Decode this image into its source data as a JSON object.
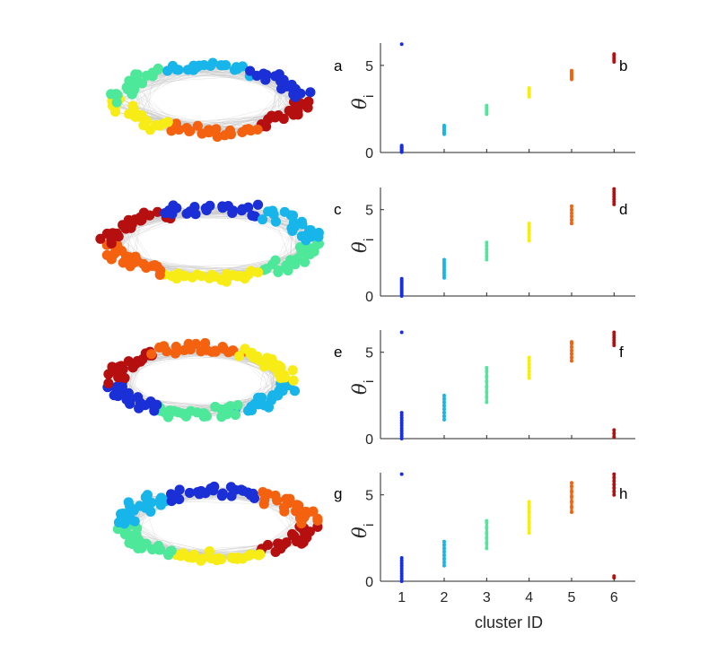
{
  "figure": {
    "ylabel_symbol": "θ",
    "ylabel_subscript": "i",
    "xlabel": "cluster ID",
    "cluster_colors": [
      "#1a2fd6",
      "#17b5ea",
      "#4de89a",
      "#f7ec15",
      "#f5620f",
      "#b50f0f"
    ],
    "network_panel_letters": [
      "a",
      "c",
      "e",
      "g"
    ],
    "scatter_panel_letters": [
      "b",
      "d",
      "f",
      "h"
    ]
  },
  "chart_data": [
    {
      "type": "scatter",
      "panel": "b",
      "xlabel": "",
      "ylabel": "θi",
      "xlim": [
        0.5,
        6.5
      ],
      "ylim": [
        0,
        6.283
      ],
      "yticks": [
        0,
        5
      ],
      "xticks": [],
      "series": [
        {
          "x": 1,
          "values": [
            0.02,
            0.05,
            0.1,
            0.15,
            0.2,
            0.25,
            0.3,
            0.35,
            0.4,
            6.22
          ]
        },
        {
          "x": 2,
          "values": [
            1.05,
            1.15,
            1.25,
            1.35,
            1.45,
            1.55
          ]
        },
        {
          "x": 3,
          "values": [
            2.2,
            2.3,
            2.4,
            2.5,
            2.6,
            2.7
          ]
        },
        {
          "x": 4,
          "values": [
            3.2,
            3.3,
            3.4,
            3.5,
            3.6,
            3.7
          ]
        },
        {
          "x": 5,
          "values": [
            4.2,
            4.3,
            4.4,
            4.5,
            4.6,
            4.7
          ]
        },
        {
          "x": 6,
          "values": [
            5.2,
            5.3,
            5.4,
            5.5,
            5.6,
            5.65
          ]
        }
      ]
    },
    {
      "type": "scatter",
      "panel": "d",
      "xlabel": "",
      "ylabel": "θi",
      "xlim": [
        0.5,
        6.5
      ],
      "ylim": [
        0,
        6.283
      ],
      "yticks": [
        0,
        5
      ],
      "xticks": [],
      "series": [
        {
          "x": 1,
          "values": [
            0.0,
            0.1,
            0.2,
            0.3,
            0.4,
            0.5,
            0.6,
            0.7,
            0.8,
            0.9,
            1.0
          ]
        },
        {
          "x": 2,
          "values": [
            1.05,
            1.2,
            1.35,
            1.5,
            1.65,
            1.8,
            1.95,
            2.1
          ]
        },
        {
          "x": 3,
          "values": [
            2.1,
            2.3,
            2.5,
            2.7,
            2.9,
            3.1
          ]
        },
        {
          "x": 4,
          "values": [
            3.2,
            3.4,
            3.6,
            3.8,
            4.0,
            4.2
          ]
        },
        {
          "x": 5,
          "values": [
            4.2,
            4.4,
            4.6,
            4.8,
            5.0,
            5.2
          ]
        },
        {
          "x": 6,
          "values": [
            5.3,
            5.45,
            5.6,
            5.75,
            5.9,
            6.05,
            6.2
          ]
        }
      ]
    },
    {
      "type": "scatter",
      "panel": "f",
      "xlabel": "",
      "ylabel": "θi",
      "xlim": [
        0.5,
        6.5
      ],
      "ylim": [
        0,
        6.283
      ],
      "yticks": [
        0,
        5
      ],
      "xticks": [],
      "series": [
        {
          "x": 1,
          "values": [
            0.0,
            0.15,
            0.3,
            0.45,
            0.6,
            0.75,
            0.9,
            1.05,
            1.2,
            1.35,
            1.5,
            6.15
          ]
        },
        {
          "x": 2,
          "values": [
            1.1,
            1.3,
            1.5,
            1.7,
            1.9,
            2.1,
            2.3,
            2.5
          ]
        },
        {
          "x": 3,
          "values": [
            2.1,
            2.4,
            2.7,
            3.0,
            3.3,
            3.6,
            3.9,
            4.1
          ]
        },
        {
          "x": 4,
          "values": [
            3.5,
            3.7,
            3.9,
            4.1,
            4.3,
            4.5,
            4.7
          ]
        },
        {
          "x": 5,
          "values": [
            4.5,
            4.7,
            4.9,
            5.1,
            5.3,
            5.5,
            5.6
          ]
        },
        {
          "x": 6,
          "values": [
            0.1,
            0.3,
            0.5,
            5.4,
            5.55,
            5.7,
            5.85,
            6.0,
            6.15
          ]
        }
      ]
    },
    {
      "type": "scatter",
      "panel": "h",
      "xlabel": "cluster ID",
      "ylabel": "θi",
      "xlim": [
        0.5,
        6.5
      ],
      "ylim": [
        0,
        6.283
      ],
      "xticks": [
        1,
        2,
        3,
        4,
        5,
        6
      ],
      "yticks": [
        0,
        5
      ],
      "series": [
        {
          "x": 1,
          "values": [
            0.0,
            0.15,
            0.3,
            0.45,
            0.6,
            0.75,
            0.9,
            1.05,
            1.2,
            1.35,
            6.2
          ]
        },
        {
          "x": 2,
          "values": [
            0.9,
            1.1,
            1.3,
            1.5,
            1.7,
            1.9,
            2.1,
            2.3
          ]
        },
        {
          "x": 3,
          "values": [
            1.9,
            2.2,
            2.5,
            2.8,
            3.1,
            3.4,
            3.5
          ]
        },
        {
          "x": 4,
          "values": [
            2.8,
            3.1,
            3.4,
            3.7,
            4.0,
            4.3,
            4.6
          ]
        },
        {
          "x": 5,
          "values": [
            4.0,
            4.3,
            4.6,
            4.9,
            5.2,
            5.5,
            5.7
          ]
        },
        {
          "x": 6,
          "values": [
            0.2,
            0.3,
            5.0,
            5.2,
            5.4,
            5.6,
            5.8,
            6.0,
            6.2
          ]
        }
      ]
    }
  ],
  "networks": [
    {
      "panel": "a",
      "node_count": 120,
      "arc_order": [
        5,
        4,
        3,
        2,
        1,
        0
      ]
    },
    {
      "panel": "c",
      "node_count": 140,
      "arc_order": [
        2,
        3,
        4,
        5,
        0,
        1
      ]
    },
    {
      "panel": "e",
      "node_count": 140,
      "arc_order": [
        1,
        2,
        0,
        5,
        4,
        3
      ]
    },
    {
      "panel": "g",
      "node_count": 150,
      "arc_order": [
        5,
        3,
        2,
        1,
        0,
        4
      ]
    }
  ]
}
